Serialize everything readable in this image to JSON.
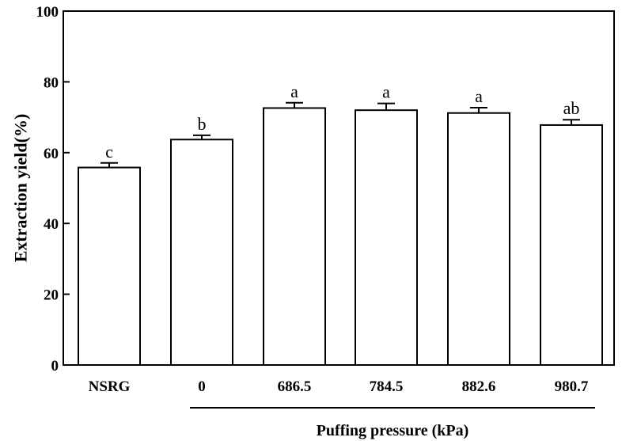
{
  "chart_data": {
    "type": "bar",
    "title": "",
    "categories": [
      "NSRG",
      "0",
      "686.5",
      "784.5",
      "882.6",
      "980.7"
    ],
    "series": [
      {
        "values": [
          55.8,
          63.7,
          72.6,
          72.0,
          71.2,
          67.8
        ],
        "errors": [
          1.3,
          1.2,
          1.5,
          1.9,
          1.5,
          1.5
        ]
      }
    ],
    "significance_letters": [
      "c",
      "b",
      "a",
      "a",
      "a",
      "ab"
    ],
    "ylabel": "Extraction yield(%)",
    "group_label": "Puffing pressure (kPa)",
    "group_start_category": 1,
    "ylim": [
      0,
      100
    ],
    "yticks": [
      0,
      20,
      40,
      60,
      80,
      100
    ],
    "grid": false,
    "bar_fill": "#ffffff",
    "bar_stroke": "#000000"
  }
}
